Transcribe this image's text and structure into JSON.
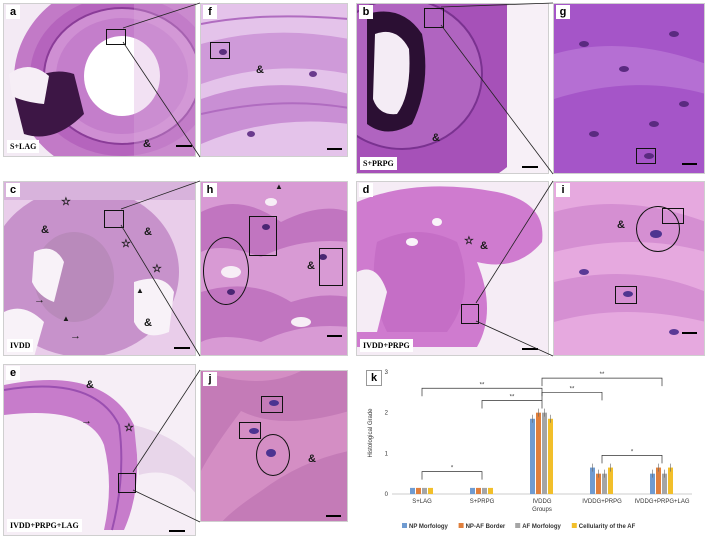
{
  "panels": {
    "a": {
      "letter": "a",
      "condition": "S+LAG"
    },
    "b": {
      "letter": "b",
      "condition": "S+PRPG"
    },
    "c": {
      "letter": "c",
      "condition": "IVDD"
    },
    "d": {
      "letter": "d",
      "condition": "IVDD+PRPG"
    },
    "e": {
      "letter": "e",
      "condition": "IVDD+PRPG+LAG"
    },
    "f": {
      "letter": "f"
    },
    "g": {
      "letter": "g"
    },
    "h": {
      "letter": "h"
    },
    "i": {
      "letter": "i"
    },
    "j": {
      "letter": "j"
    },
    "k": {
      "letter": "k"
    }
  },
  "symbols": {
    "amp": "&",
    "star": "☆",
    "arrowhead": "▲",
    "arrow": "→"
  },
  "colors": {
    "he_pink": "#c678c8",
    "he_purple": "#9a4fb0",
    "dark_purple": "#3d1645",
    "bg": "#f4eef5"
  },
  "chart_data": {
    "type": "bar",
    "ylabel": "Histological Grade",
    "xlabel": "Groups",
    "ylim": [
      0,
      3
    ],
    "yticks": [
      0,
      1,
      2,
      3
    ],
    "categories": [
      "S+LAG",
      "S+PRPG",
      "IVDDG",
      "IVDDG+PRPG",
      "IVDDG+PRPG+LAG"
    ],
    "series": [
      {
        "name": "NP Morfology",
        "color": "#6f9bd1",
        "values": [
          0.15,
          0.15,
          1.85,
          0.65,
          0.5
        ]
      },
      {
        "name": "NP-AF Border",
        "color": "#e07f3c",
        "values": [
          0.15,
          0.15,
          2.0,
          0.5,
          0.65
        ]
      },
      {
        "name": "AF Morfology",
        "color": "#a5a5a5",
        "values": [
          0.15,
          0.15,
          2.0,
          0.5,
          0.5
        ]
      },
      {
        "name": "Cellularity of the AF",
        "color": "#f2bf2a",
        "values": [
          0.15,
          0.15,
          1.85,
          0.65,
          0.65
        ]
      }
    ],
    "significance": [
      "**",
      "**",
      "**",
      "**",
      "*",
      "*"
    ]
  }
}
